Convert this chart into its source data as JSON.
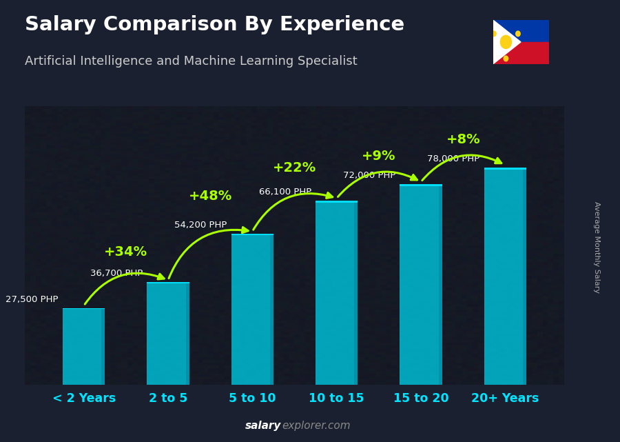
{
  "title": "Salary Comparison By Experience",
  "subtitle": "Artificial Intelligence and Machine Learning Specialist",
  "ylabel": "Average Monthly Salary",
  "footer_bold": "salary",
  "footer_normal": "explorer.com",
  "categories": [
    "< 2 Years",
    "2 to 5",
    "5 to 10",
    "10 to 15",
    "15 to 20",
    "20+ Years"
  ],
  "values": [
    27500,
    36700,
    54200,
    66100,
    72000,
    78000
  ],
  "labels": [
    "27,500 PHP",
    "36,700 PHP",
    "54,200 PHP",
    "66,100 PHP",
    "72,000 PHP",
    "78,000 PHP"
  ],
  "pct_changes": [
    "+34%",
    "+48%",
    "+22%",
    "+9%",
    "+8%"
  ],
  "bar_main_color": "#00bcd4",
  "bar_right_color": "#0090a8",
  "bar_top_color": "#00e5ff",
  "bg_color": "#1a2030",
  "text_color": "#ffffff",
  "label_color": "#ffffff",
  "pct_color": "#aaff00",
  "arrow_color": "#aaff00",
  "cat_color": "#00e5ff",
  "footer_bold_color": "#ffffff",
  "footer_normal_color": "#888888",
  "ylim": [
    0,
    100000
  ],
  "bar_width": 0.5,
  "bar_alpha": 0.85
}
